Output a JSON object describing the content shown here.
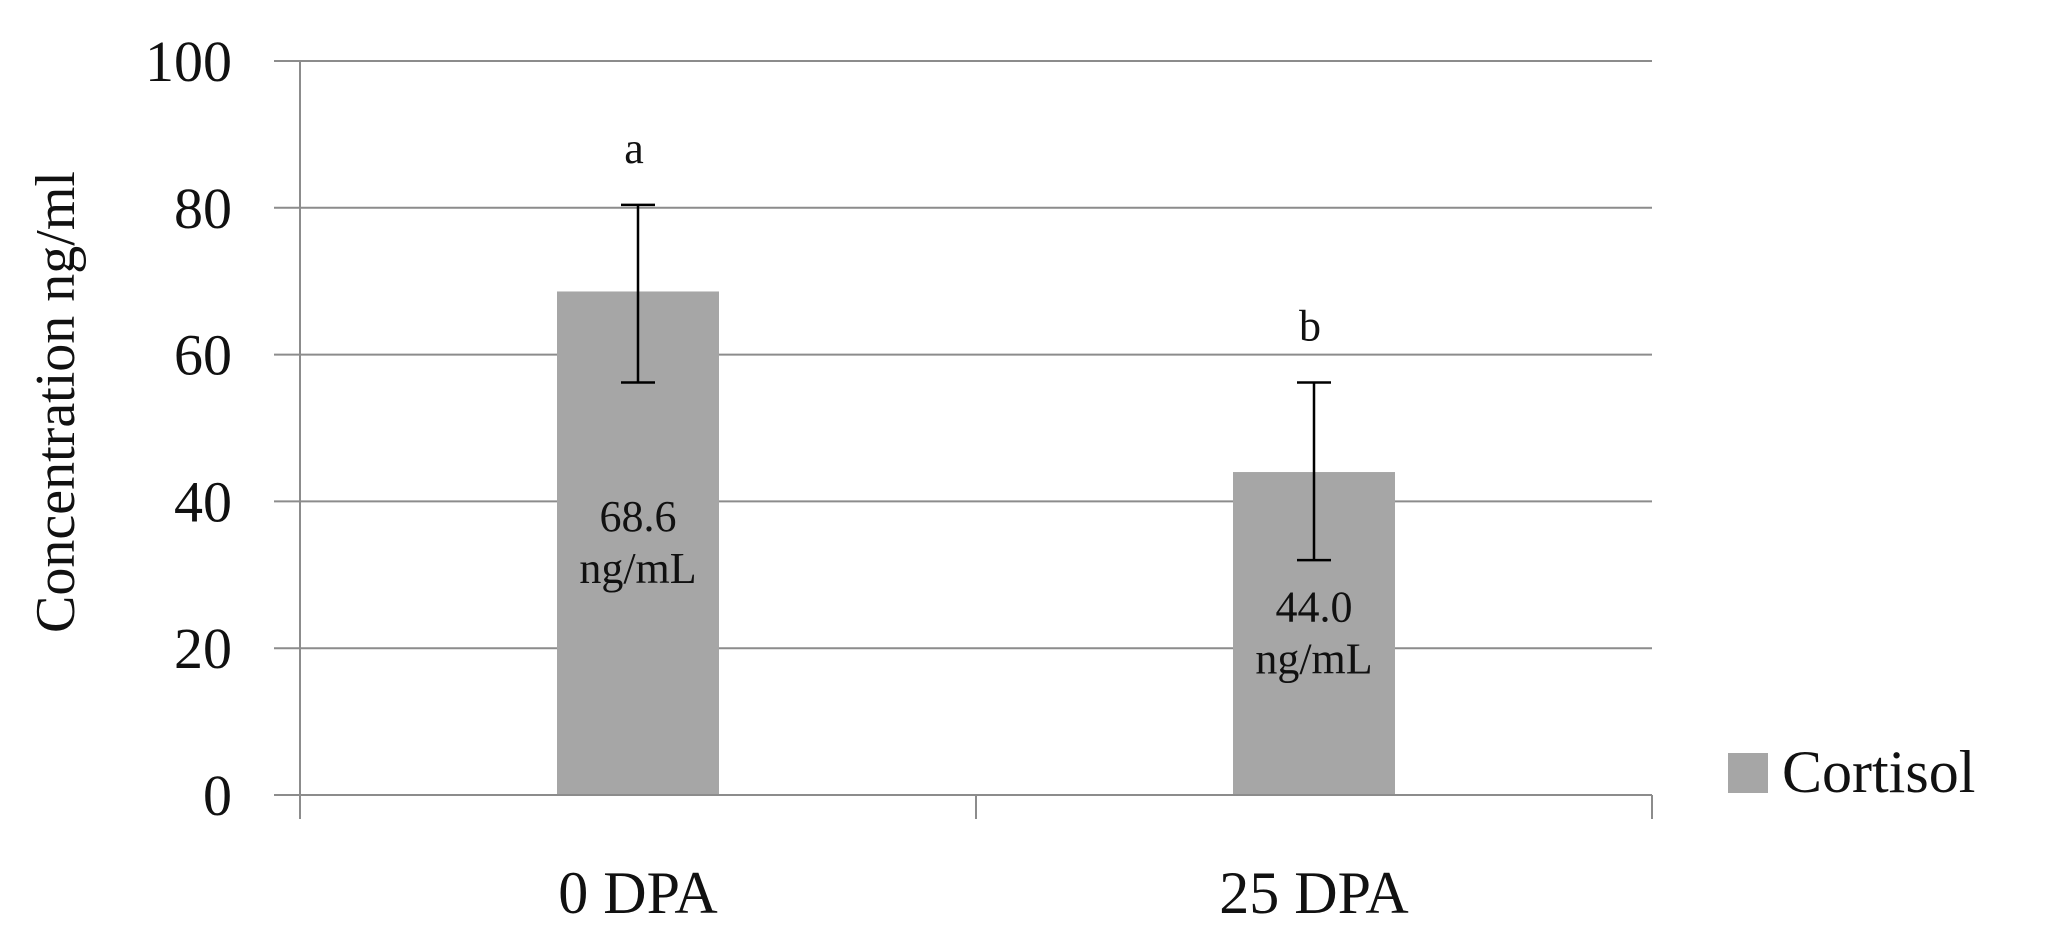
{
  "chart_data": {
    "type": "bar",
    "title": "",
    "xlabel": "",
    "ylabel": "Concentration ng/ml",
    "ylim": [
      0,
      100
    ],
    "yticks": [
      0,
      20,
      40,
      60,
      80,
      100
    ],
    "grid": true,
    "categories": [
      "0 DPA",
      "25 DPA"
    ],
    "series": [
      {
        "name": "Cortisol",
        "color": "#a6a6a6",
        "values": [
          68.6,
          44.0
        ],
        "error_upper": [
          80.4,
          56.2
        ],
        "error_lower": [
          56.2,
          32.0
        ],
        "data_labels": [
          [
            "68.6",
            "ng/mL"
          ],
          [
            "44.0",
            "ng/mL"
          ]
        ],
        "significance_letters": [
          "a",
          "b"
        ]
      }
    ],
    "legend": {
      "position": "right",
      "entries": [
        "Cortisol"
      ]
    }
  }
}
